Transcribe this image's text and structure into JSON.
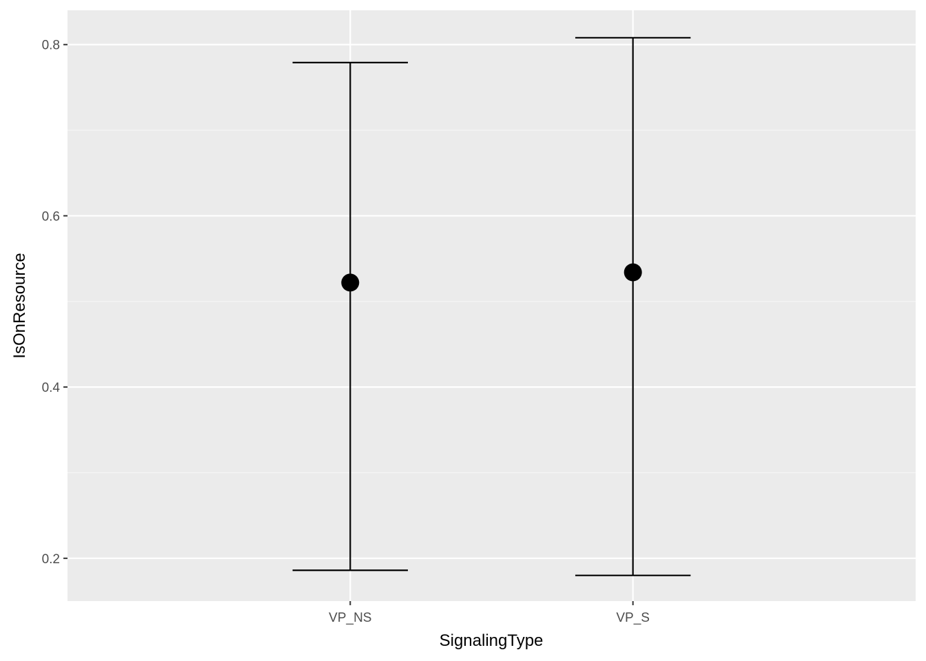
{
  "chart_data": {
    "type": "scatter",
    "subtype": "point-with-errorbars",
    "title": "",
    "xlabel": "SignalingType",
    "ylabel": "IsOnResource",
    "categories": [
      "VP_NS",
      "VP_S"
    ],
    "series": [
      {
        "values": [
          0.522,
          0.534
        ],
        "ymin": [
          0.186,
          0.18
        ],
        "ymax": [
          0.779,
          0.808
        ]
      }
    ],
    "ylim": [
      0.15,
      0.84
    ],
    "yticks": [
      0.2,
      0.4,
      0.6,
      0.8
    ],
    "ytick_labels": [
      "0.2",
      "0.4",
      "0.6",
      "0.8"
    ],
    "grid": true,
    "legend": "none",
    "colors": {
      "panel_background": "#ebebeb",
      "grid_major": "#ffffff",
      "grid_minor": "#f5f5f5",
      "marks": "#000000",
      "tick_text": "#4d4d4d",
      "tick_mark": "#333333"
    }
  }
}
